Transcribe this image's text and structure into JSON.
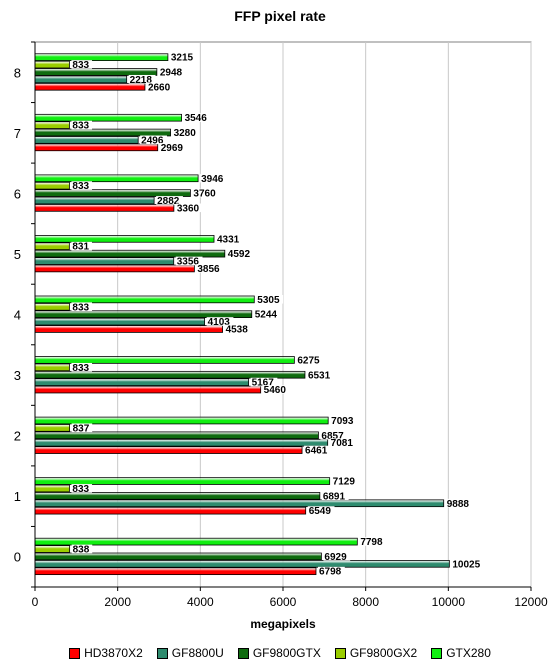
{
  "chart_data": {
    "type": "bar",
    "orientation": "horizontal",
    "title": "FFP pixel rate",
    "xlabel": "megapixels",
    "ylabel": "",
    "xlim": [
      0,
      12000
    ],
    "xticks": [
      0,
      2000,
      4000,
      6000,
      8000,
      10000,
      12000
    ],
    "grid": true,
    "legend_position": "bottom",
    "categories": [
      "0",
      "1",
      "2",
      "3",
      "4",
      "5",
      "6",
      "7",
      "8"
    ],
    "series": [
      {
        "name": "HD3870X2",
        "color": "#ff0000",
        "values": [
          6798,
          6549,
          6461,
          5460,
          4538,
          3856,
          3360,
          2969,
          2660
        ]
      },
      {
        "name": "GF8800U",
        "color": "#2e8b6e",
        "values": [
          10025,
          9888,
          7081,
          5167,
          4103,
          3356,
          2882,
          2496,
          2218
        ]
      },
      {
        "name": "GF9800GTX",
        "color": "#0f6b0f",
        "values": [
          6929,
          6891,
          6857,
          6531,
          5244,
          4592,
          3760,
          3280,
          2948
        ]
      },
      {
        "name": "GF9800GX2",
        "color": "#9acd00",
        "values": [
          838,
          833,
          837,
          833,
          833,
          831,
          833,
          833,
          833
        ]
      },
      {
        "name": "GTX280",
        "color": "#11ee11",
        "values": [
          7798,
          7129,
          7093,
          6275,
          5305,
          4331,
          3946,
          3546,
          3215
        ]
      }
    ]
  }
}
